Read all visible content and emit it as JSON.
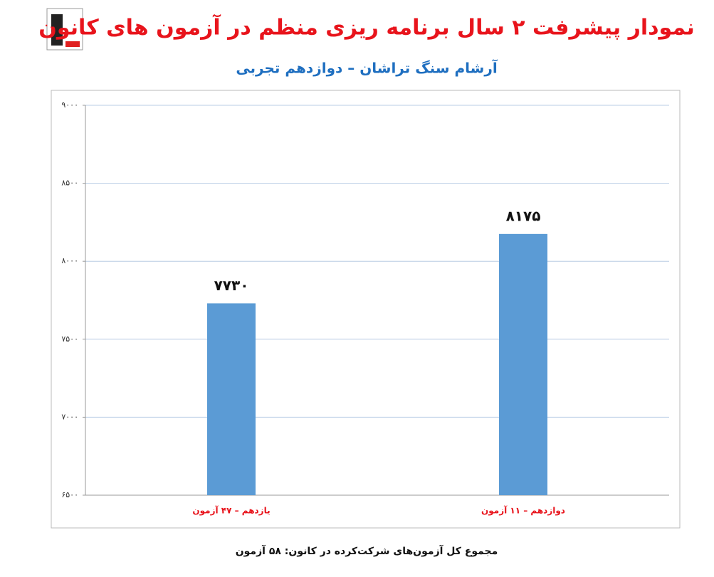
{
  "chart_data": {
    "type": "bar",
    "title": "نمودار پیشرفت ۲ سال برنامه ریزی منظم در آزمون های کانون",
    "subtitle": "آرشام سنگ تراشان – دوازدهم تجربی",
    "categories": [
      "یازدهم – ۴۷ آزمون",
      "دوازدهم – ۱۱ آزمون"
    ],
    "values": [
      7730,
      8175
    ],
    "value_labels": [
      "۷۷۳۰",
      "۸۱۷۵"
    ],
    "color": "#5b9bd5",
    "ylim": [
      6500,
      9000
    ],
    "yticks": [
      {
        "value": 6500,
        "label": "۶۵۰۰"
      },
      {
        "value": 7000,
        "label": "۷۰۰۰"
      },
      {
        "value": 7500,
        "label": "۷۵۰۰"
      },
      {
        "value": 8000,
        "label": "۸۰۰۰"
      },
      {
        "value": 8500,
        "label": "۸۵۰۰"
      },
      {
        "value": 9000,
        "label": "۹۰۰۰"
      }
    ],
    "grid": true,
    "footnote": "مجموع کل آزمون‌های شرکت‌کرده در کانون: ۵۸ آزمون"
  }
}
